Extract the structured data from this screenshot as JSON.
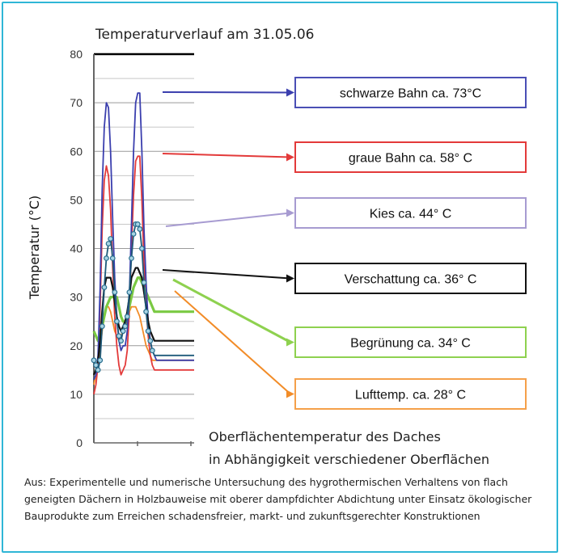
{
  "chart_data": {
    "type": "line",
    "title": "Temperaturverlauf am 31.05.06",
    "ylabel": "Temperatur (°C)",
    "xlabel": "",
    "ylim": [
      0,
      80
    ],
    "yticks": [
      0,
      10,
      20,
      30,
      40,
      50,
      60,
      70,
      80
    ],
    "grid": true,
    "x": [
      0,
      0.5,
      1,
      1.5,
      2,
      2.5,
      3,
      3.5,
      4,
      4.5,
      5,
      5.5,
      6,
      6.5,
      7,
      7.5,
      8,
      8.5,
      9,
      9.5,
      10,
      10.5,
      11,
      11.5,
      12,
      12.5,
      13,
      13.5,
      14,
      14.5,
      15,
      15.5,
      16,
      16.5,
      17,
      17.5,
      18,
      18.5,
      19,
      19.5,
      20,
      20.5,
      21,
      21.5,
      22,
      22.5,
      23,
      23.5,
      24
    ],
    "series": [
      {
        "label": "schwarze Bahn ca. 73°C",
        "color": "#3b3fae",
        "values": [
          13,
          14,
          18,
          32,
          52,
          65,
          70,
          69,
          60,
          46,
          34,
          26,
          21,
          19,
          20,
          20,
          23,
          30,
          45,
          60,
          70,
          72,
          72,
          60,
          44,
          33,
          25,
          21,
          19,
          18,
          17,
          17,
          17,
          17,
          17,
          17,
          17,
          17,
          17,
          17,
          17,
          17,
          17,
          17,
          17,
          17,
          17,
          17,
          17
        ]
      },
      {
        "label": "graue Bahn ca. 58° C",
        "color": "#e33a3a",
        "values": [
          10,
          12,
          16,
          28,
          44,
          54,
          57,
          55,
          48,
          36,
          26,
          20,
          16,
          14,
          15,
          16,
          19,
          27,
          40,
          51,
          58,
          59,
          59,
          50,
          37,
          28,
          22,
          18,
          16,
          15,
          15,
          15,
          15,
          15,
          15,
          15,
          15,
          15,
          15,
          15,
          15,
          15,
          15,
          15,
          15,
          15,
          15,
          15,
          15
        ]
      },
      {
        "label": "Kies ca. 44° C",
        "color": "#1e5a7a",
        "values": [
          17,
          16,
          15,
          17,
          24,
          32,
          38,
          41,
          42,
          38,
          31,
          25,
          22,
          21,
          23,
          24,
          26,
          31,
          38,
          43,
          45,
          45,
          44,
          40,
          33,
          27,
          23,
          21,
          19,
          18,
          18,
          18,
          18,
          18,
          18,
          18,
          18,
          18,
          18,
          18,
          18,
          18,
          18,
          18,
          18,
          18,
          18,
          18,
          18
        ]
      },
      {
        "label": "Verschattung ca. 36° C",
        "color": "#111111",
        "values": [
          14,
          15,
          17,
          21,
          27,
          32,
          34,
          34,
          34,
          32,
          29,
          26,
          24,
          23,
          24,
          25,
          27,
          30,
          34,
          35,
          36,
          36,
          35,
          34,
          31,
          28,
          25,
          23,
          22,
          21,
          21,
          21,
          21,
          21,
          21,
          21,
          21,
          21,
          21,
          21,
          21,
          21,
          21,
          21,
          21,
          21,
          21,
          21,
          21
        ]
      },
      {
        "label": "Begrünung ca. 34° C",
        "color": "#7ac943",
        "values": [
          23,
          22,
          21,
          22,
          24,
          26,
          28,
          29,
          30,
          30,
          30,
          30,
          28,
          26,
          25,
          25,
          26,
          28,
          30,
          32,
          33,
          34,
          34,
          33,
          32,
          31,
          30,
          29,
          28,
          27,
          27,
          27,
          27,
          27,
          27,
          27,
          27,
          27,
          27,
          27,
          27,
          27,
          27,
          27,
          27,
          27,
          27,
          27,
          27
        ]
      },
      {
        "label": "Lufttemp. ca. 28° C",
        "color": "#f28c28",
        "values": [
          12,
          14,
          16,
          19,
          23,
          26,
          28,
          28,
          27,
          25,
          23,
          22,
          21,
          22,
          23,
          24,
          25,
          27,
          28,
          28,
          28,
          27,
          26,
          24,
          22,
          20,
          19,
          18,
          17,
          17,
          17,
          17,
          17,
          17,
          17,
          17,
          17,
          17,
          17,
          17,
          17,
          17,
          17,
          17,
          17,
          17,
          17,
          17,
          17
        ]
      }
    ],
    "legend_boxes": [
      {
        "label": "schwarze Bahn ca. 73°C",
        "border": "#4a4fb5",
        "series": 0
      },
      {
        "label": "graue Bahn  ca. 58° C",
        "border": "#e33a3a",
        "series": 1
      },
      {
        "label": "Kies  ca. 44° C",
        "border": "#a79bd1",
        "series": 2
      },
      {
        "label": "Verschattung ca. 36° C",
        "border": "#111111",
        "series": 3
      },
      {
        "label": "Begrünung ca. 34° C",
        "border": "#8ed14f",
        "series": 4
      },
      {
        "label": "Lufttemp. ca. 28° C",
        "border": "#f5a04a",
        "series": 5
      }
    ],
    "annotation_lines": [
      "Oberflächentemperatur des Daches",
      "in Abhängigkeit verschiedener Oberflächen"
    ]
  },
  "source_text": "Aus: Experimentelle und numerische Untersuchung des hygrothermischen Verhaltens von flach geneigten Dächern in Holzbauweise mit oberer dampfdichter Abdichtung unter Einsatz ökologischer Bauprodukte zum Erreichen schadensfreier, markt- und zukunftsgerechter Konstruktionen",
  "colors": {
    "frame": "#2fb6d6"
  }
}
